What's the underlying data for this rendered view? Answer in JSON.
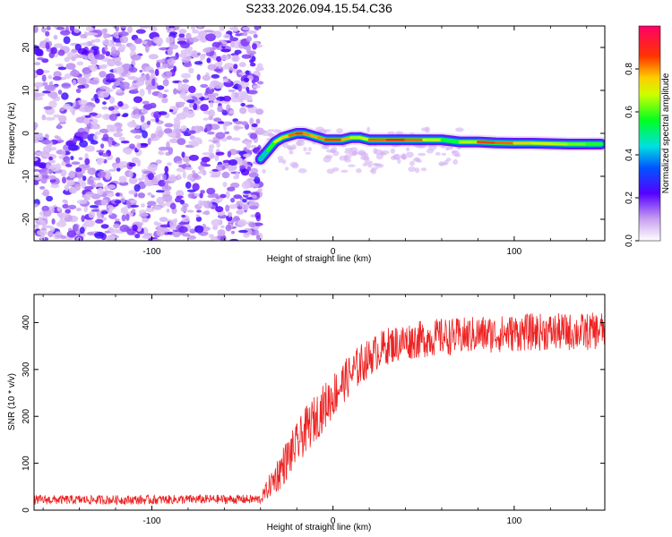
{
  "title": "S233.2026.094.15.54.C36",
  "chart_data": [
    {
      "type": "heatmap",
      "title": "",
      "xlabel": "Height of straight line (km)",
      "ylabel": "Frequency (Hz)",
      "xlim": [
        -165,
        150
      ],
      "ylim": [
        -25,
        25
      ],
      "xticks": [
        -100,
        0,
        100
      ],
      "yticks": [
        -20,
        -10,
        0,
        10,
        20
      ],
      "colorbar": {
        "label": "Normalized spectral amplitude",
        "range": [
          0,
          1
        ],
        "ticks": [
          0.0,
          0.2,
          0.4,
          0.6,
          0.8
        ]
      },
      "noise_region_x": [
        -165,
        -40
      ],
      "ridge": {
        "description": "tonal ridge of peak amplitude",
        "x": [
          -40,
          -36,
          -32,
          -28,
          -24,
          -20,
          -16,
          -12,
          -8,
          -4,
          0,
          5,
          10,
          15,
          20,
          30,
          40,
          50,
          60,
          70,
          80,
          90,
          100,
          110,
          120,
          130,
          140,
          148
        ],
        "frequency": [
          -6,
          -4,
          -2,
          -1,
          -0.5,
          0,
          0,
          -0.5,
          -1,
          -1.5,
          -1.5,
          -1.5,
          -1,
          -1,
          -1.5,
          -1.5,
          -1.5,
          -1.5,
          -1.5,
          -2,
          -2,
          -2.2,
          -2.3,
          -2.3,
          -2.4,
          -2.5,
          -2.5,
          -2.5
        ],
        "amplitude": [
          0.35,
          0.55,
          0.7,
          0.8,
          0.85,
          0.95,
          0.9,
          0.85,
          0.85,
          0.9,
          0.95,
          0.9,
          0.8,
          0.65,
          0.85,
          0.95,
          0.95,
          0.85,
          0.65,
          0.55,
          0.9,
          0.95,
          0.85,
          0.8,
          0.75,
          0.7,
          0.65,
          0.6
        ]
      }
    },
    {
      "type": "line",
      "title": "",
      "xlabel": "Height of straight line (km)",
      "ylabel": "SNR (10 * v/v)",
      "xlim": [
        -165,
        150
      ],
      "ylim": [
        0,
        460
      ],
      "xticks": [
        -100,
        0,
        100
      ],
      "yticks": [
        0,
        100,
        200,
        300,
        400
      ],
      "color": "#ee2222",
      "series": [
        {
          "name": "SNR",
          "x": [
            -165,
            -140,
            -120,
            -100,
            -80,
            -60,
            -40,
            -30,
            -25,
            -20,
            -15,
            -10,
            -5,
            0,
            5,
            10,
            15,
            20,
            25,
            30,
            40,
            50,
            60,
            70,
            80,
            90,
            100,
            110,
            120,
            130,
            140,
            150
          ],
          "mean": [
            22,
            22,
            22,
            22,
            23,
            23,
            23,
            80,
            110,
            140,
            170,
            195,
            220,
            245,
            270,
            290,
            310,
            325,
            340,
            350,
            360,
            365,
            370,
            370,
            375,
            375,
            378,
            380,
            380,
            380,
            380,
            385
          ],
          "noise_amplitude": [
            10,
            10,
            10,
            10,
            10,
            10,
            10,
            40,
            45,
            45,
            50,
            50,
            50,
            50,
            45,
            45,
            45,
            40,
            40,
            40,
            40,
            40,
            40,
            40,
            40,
            40,
            40,
            40,
            40,
            40,
            40,
            40
          ]
        }
      ]
    }
  ]
}
